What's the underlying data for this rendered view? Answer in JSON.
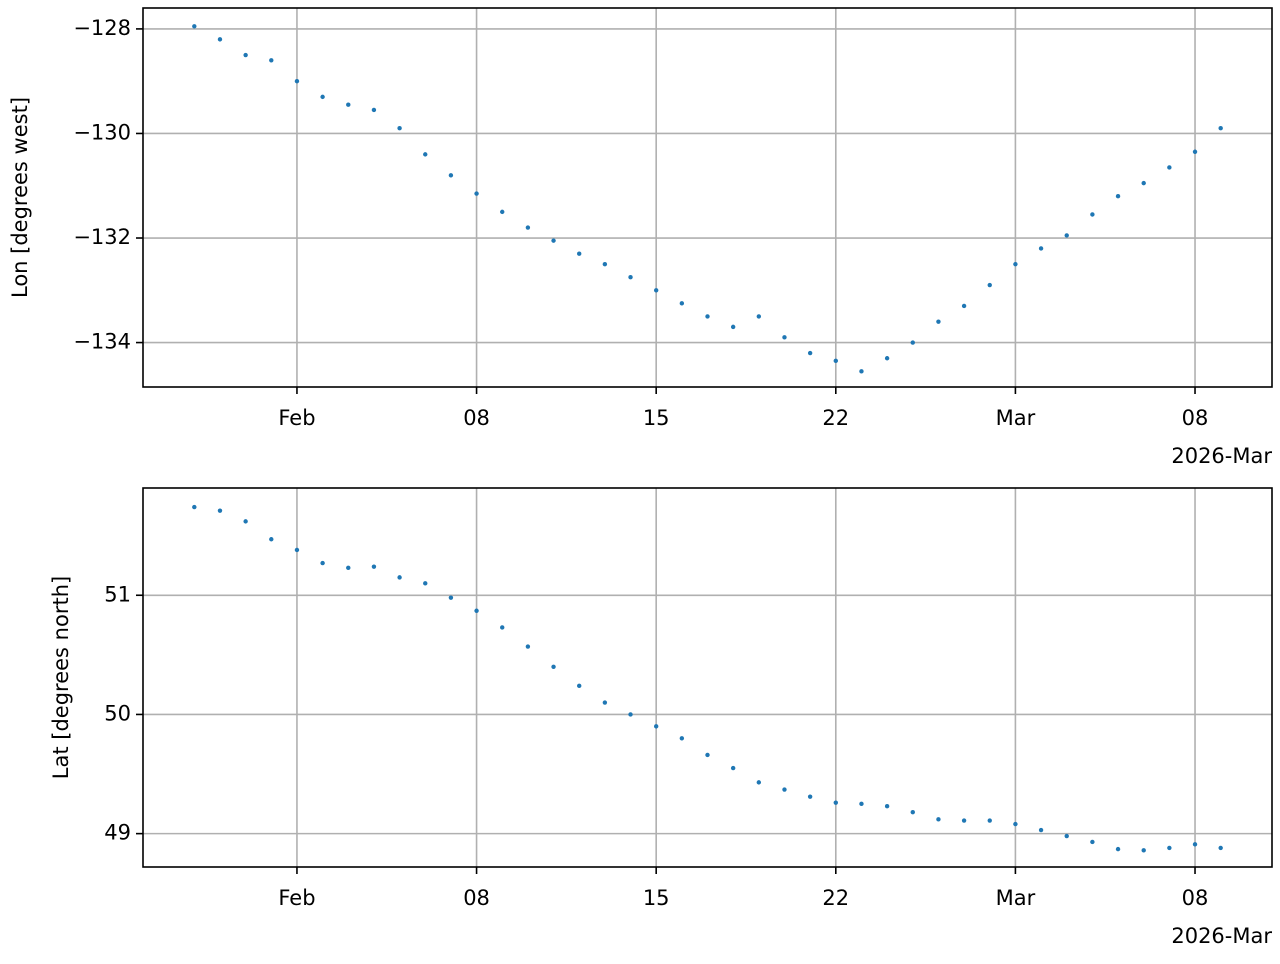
{
  "chart_data": [
    {
      "type": "scatter",
      "y_label": "Lon [degrees west]",
      "x_offset_label": "2026-Mar",
      "color": "#1f77b4",
      "grid": true,
      "x": [
        "2026-01-28",
        "2026-01-29",
        "2026-01-30",
        "2026-01-31",
        "2026-02-01",
        "2026-02-02",
        "2026-02-03",
        "2026-02-04",
        "2026-02-05",
        "2026-02-06",
        "2026-02-07",
        "2026-02-08",
        "2026-02-09",
        "2026-02-10",
        "2026-02-11",
        "2026-02-12",
        "2026-02-13",
        "2026-02-14",
        "2026-02-15",
        "2026-02-16",
        "2026-02-17",
        "2026-02-18",
        "2026-02-19",
        "2026-02-20",
        "2026-02-21",
        "2026-02-22",
        "2026-02-23",
        "2026-02-24",
        "2026-02-25",
        "2026-02-26",
        "2026-02-27",
        "2026-02-28",
        "2026-03-01",
        "2026-03-02",
        "2026-03-03",
        "2026-03-04",
        "2026-03-05",
        "2026-03-06",
        "2026-03-07",
        "2026-03-08",
        "2026-03-09"
      ],
      "values": [
        -127.95,
        -128.2,
        -128.5,
        -128.6,
        -129.0,
        -129.3,
        -129.45,
        -129.55,
        -129.9,
        -130.4,
        -130.8,
        -131.15,
        -131.5,
        -131.8,
        -132.05,
        -132.3,
        -132.5,
        -132.75,
        -133.0,
        -133.25,
        -133.5,
        -133.7,
        -133.5,
        -133.9,
        -134.2,
        -134.35,
        -134.55,
        -134.3,
        -134.0,
        -133.6,
        -133.3,
        -132.9,
        -132.5,
        -132.2,
        -131.95,
        -131.55,
        -131.2,
        -130.95,
        -130.65,
        -130.35,
        -129.9
      ],
      "xlim": [
        "2026-01-26",
        "2026-03-11"
      ],
      "xticks": [
        {
          "value": "2026-02-01",
          "label": "Feb"
        },
        {
          "value": "2026-02-08",
          "label": "08"
        },
        {
          "value": "2026-02-15",
          "label": "15"
        },
        {
          "value": "2026-02-22",
          "label": "22"
        },
        {
          "value": "2026-03-01",
          "label": "Mar"
        },
        {
          "value": "2026-03-08",
          "label": "08"
        }
      ],
      "ylim": [
        -134.85,
        -127.6
      ],
      "yticks": [
        {
          "value": -128,
          "label": "−128"
        },
        {
          "value": -130,
          "label": "−130"
        },
        {
          "value": -132,
          "label": "−132"
        },
        {
          "value": -134,
          "label": "−134"
        }
      ]
    },
    {
      "type": "scatter",
      "y_label": "Lat [degrees north]",
      "x_offset_label": "2026-Mar",
      "color": "#1f77b4",
      "grid": true,
      "x": [
        "2026-01-28",
        "2026-01-29",
        "2026-01-30",
        "2026-01-31",
        "2026-02-01",
        "2026-02-02",
        "2026-02-03",
        "2026-02-04",
        "2026-02-05",
        "2026-02-06",
        "2026-02-07",
        "2026-02-08",
        "2026-02-09",
        "2026-02-10",
        "2026-02-11",
        "2026-02-12",
        "2026-02-13",
        "2026-02-14",
        "2026-02-15",
        "2026-02-16",
        "2026-02-17",
        "2026-02-18",
        "2026-02-19",
        "2026-02-20",
        "2026-02-21",
        "2026-02-22",
        "2026-02-23",
        "2026-02-24",
        "2026-02-25",
        "2026-02-26",
        "2026-02-27",
        "2026-02-28",
        "2026-03-01",
        "2026-03-02",
        "2026-03-03",
        "2026-03-04",
        "2026-03-05",
        "2026-03-06",
        "2026-03-07",
        "2026-03-08",
        "2026-03-09"
      ],
      "values": [
        51.74,
        51.71,
        51.62,
        51.47,
        51.38,
        51.27,
        51.23,
        51.24,
        51.15,
        51.1,
        50.98,
        50.87,
        50.73,
        50.57,
        50.4,
        50.24,
        50.1,
        50.0,
        49.9,
        49.8,
        49.66,
        49.55,
        49.43,
        49.37,
        49.31,
        49.26,
        49.25,
        49.23,
        49.18,
        49.12,
        49.11,
        49.11,
        49.08,
        49.03,
        48.98,
        48.93,
        48.87,
        48.86,
        48.88,
        48.91,
        48.88
      ],
      "xlim": [
        "2026-01-26",
        "2026-03-11"
      ],
      "xticks": [
        {
          "value": "2026-02-01",
          "label": "Feb"
        },
        {
          "value": "2026-02-08",
          "label": "08"
        },
        {
          "value": "2026-02-15",
          "label": "15"
        },
        {
          "value": "2026-02-22",
          "label": "22"
        },
        {
          "value": "2026-03-01",
          "label": "Mar"
        },
        {
          "value": "2026-03-08",
          "label": "08"
        }
      ],
      "ylim": [
        48.72,
        51.9
      ],
      "yticks": [
        49,
        50,
        51
      ]
    }
  ]
}
